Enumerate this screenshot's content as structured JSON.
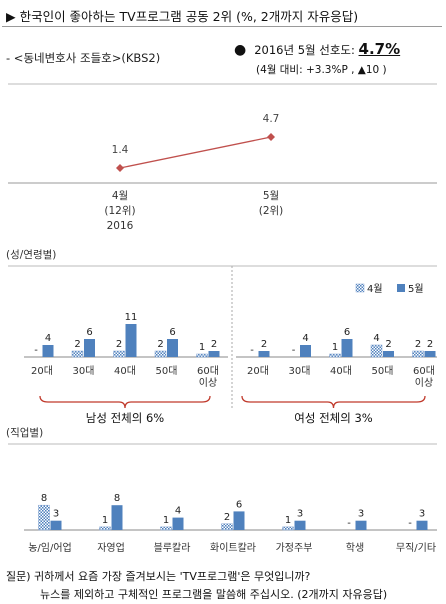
{
  "header": {
    "title": "▶ 한국인이 좋아하는 TV프로그램 공동 2위",
    "qualifier": "(%, 2개까지 자유응답)",
    "program": "- <동네변호사 조들호>(KBS2)",
    "headline_prefix": "2016년 5월 선호도:",
    "headline_value": "4.7%",
    "headline_change": "(4월 대비: +3.3%P , ▲10 )"
  },
  "chart_data": [
    {
      "type": "line",
      "categories": [
        [
          "4월",
          "(12위)",
          "2016"
        ],
        [
          "5월",
          "(2위)"
        ]
      ],
      "values": [
        1.4,
        4.7
      ],
      "value_labels": [
        "1.4",
        "4.7"
      ],
      "color": "#c0504d",
      "grid": false
    },
    {
      "type": "bar",
      "title": "(성/연령별)",
      "legend": [
        "4월",
        "5월"
      ],
      "legend_position": "top-right",
      "series_colors": [
        "#9bbbdf",
        "#4f81bd"
      ],
      "groups": [
        {
          "group_label": "남성 전체의 6%",
          "categories": [
            "20대",
            "30대",
            "40대",
            "50대",
            "60대 이상"
          ],
          "series": [
            {
              "name": "4월",
              "values": [
                null,
                2,
                2,
                2,
                1
              ],
              "labels": [
                "-",
                "2",
                "2",
                "2",
                "1"
              ]
            },
            {
              "name": "5월",
              "values": [
                4,
                6,
                11,
                6,
                2
              ],
              "labels": [
                "4",
                "6",
                "11",
                "6",
                "2"
              ]
            }
          ]
        },
        {
          "group_label": "여성 전체의 3%",
          "categories": [
            "20대",
            "30대",
            "40대",
            "50대",
            "60대 이상"
          ],
          "series": [
            {
              "name": "4월",
              "values": [
                null,
                null,
                1,
                4,
                2
              ],
              "labels": [
                "-",
                "-",
                "1",
                "4",
                "2"
              ]
            },
            {
              "name": "5월",
              "values": [
                2,
                4,
                6,
                2,
                2
              ],
              "labels": [
                "2",
                "4",
                "6",
                "2",
                "2"
              ]
            }
          ]
        }
      ]
    },
    {
      "type": "bar",
      "title": "(직업별)",
      "categories": [
        "농/임/어업",
        "자영업",
        "블루칼라",
        "화이트칼라",
        "가정주부",
        "학생",
        "무직/기타"
      ],
      "series": [
        {
          "name": "4월",
          "values": [
            8,
            1,
            1,
            2,
            1,
            null,
            null
          ],
          "labels": [
            "8",
            "1",
            "1",
            "2",
            "1",
            "-",
            "-"
          ]
        },
        {
          "name": "5월",
          "values": [
            3,
            8,
            4,
            6,
            3,
            3,
            3
          ],
          "labels": [
            "3",
            "8",
            "4",
            "6",
            "3",
            "3",
            "3"
          ]
        }
      ]
    }
  ],
  "footnote": {
    "line1": "질문) 귀하께서 요즘 가장 즐겨보시는 'TV프로그램'은 무엇입니까?",
    "line2": "뉴스를 제외하고 구체적인 프로그램을 말씀해 주십시오. (2개까지 자유응답)"
  }
}
